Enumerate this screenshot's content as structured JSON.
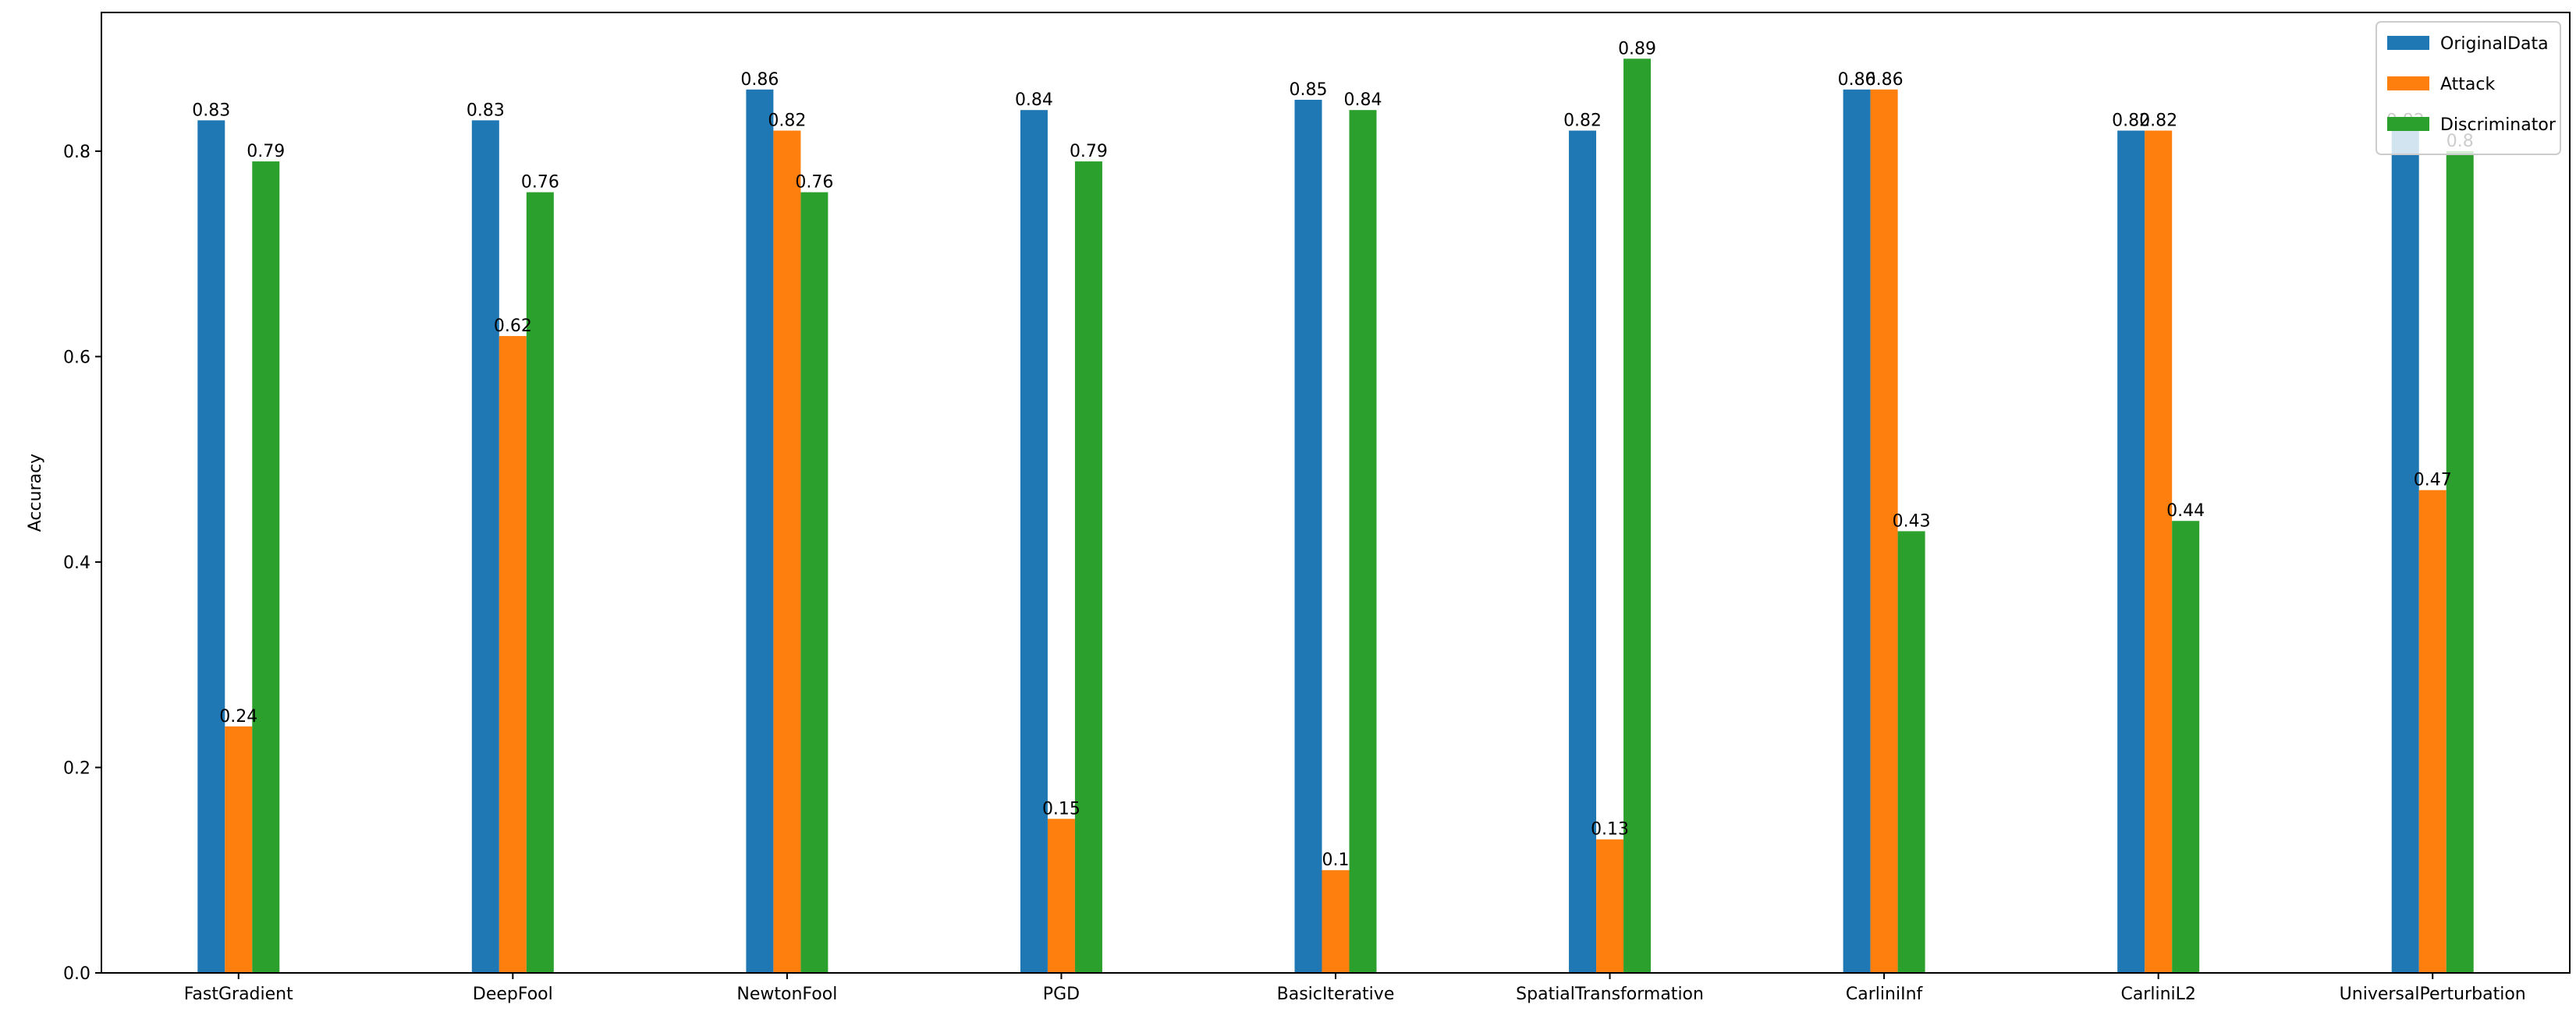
{
  "chart_data": {
    "type": "bar",
    "title": "",
    "xlabel": "",
    "ylabel": "Accuracy",
    "ylim": [
      0,
      0.935
    ],
    "yticks": [
      "0.0",
      "0.2",
      "0.4",
      "0.6",
      "0.8"
    ],
    "categories": [
      "FastGradient",
      "DeepFool",
      "NewtonFool",
      "PGD",
      "BasicIterative",
      "SpatialTransformation",
      "CarliniInf",
      "CarliniL2",
      "UniversalPerturbation"
    ],
    "series": [
      {
        "name": "OriginalData",
        "color": "#1f77b4",
        "values": [
          0.83,
          0.83,
          0.86,
          0.84,
          0.85,
          0.82,
          0.86,
          0.82,
          0.82
        ],
        "labels": [
          "0.83",
          "0.83",
          "0.86",
          "0.84",
          "0.85",
          "0.82",
          "0.86",
          "0.82",
          "0.82"
        ]
      },
      {
        "name": "Attack",
        "color": "#ff7f0e",
        "values": [
          0.24,
          0.62,
          0.82,
          0.15,
          0.1,
          0.13,
          0.86,
          0.82,
          0.47
        ],
        "labels": [
          "0.24",
          "0.62",
          "0.82",
          "0.15",
          "0.1",
          "0.13",
          "0.86",
          "0.82",
          "0.47"
        ]
      },
      {
        "name": "Discriminator",
        "color": "#2ca02c",
        "values": [
          0.79,
          0.76,
          0.76,
          0.79,
          0.84,
          0.89,
          0.43,
          0.44,
          0.8
        ],
        "labels": [
          "0.79",
          "0.76",
          "0.76",
          "0.79",
          "0.84",
          "0.89",
          "0.43",
          "0.44",
          "0.8"
        ]
      }
    ],
    "grid": false,
    "legend_position": "top-right"
  }
}
